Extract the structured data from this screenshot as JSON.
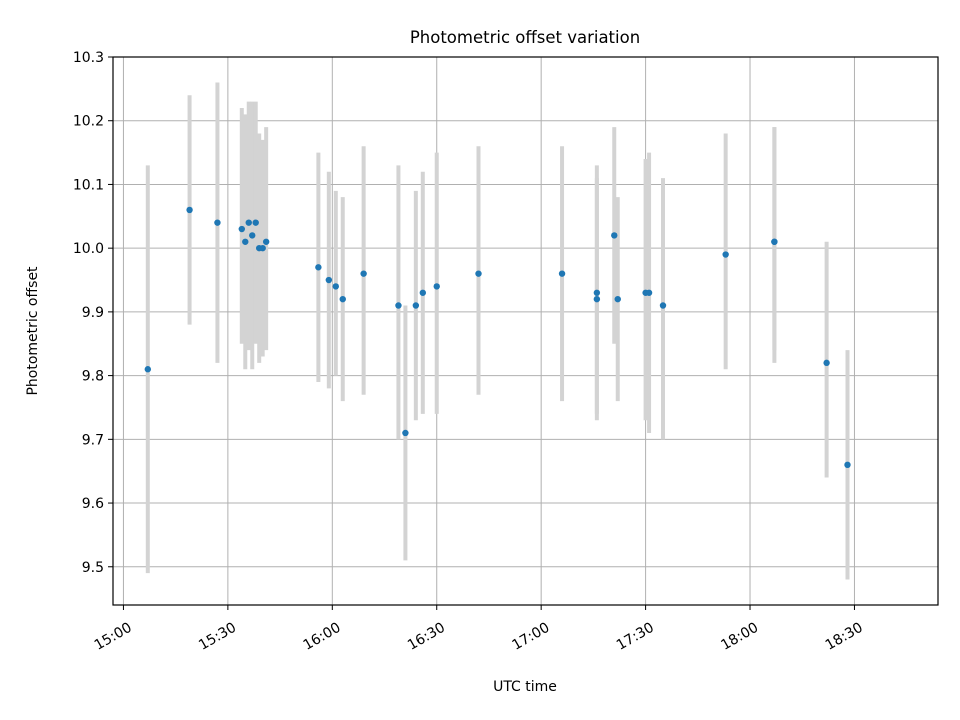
{
  "chart_data": {
    "type": "scatter",
    "title": "Photometric offset variation",
    "xlabel": "UTC time",
    "ylabel": "Photometric offset",
    "xlim": [
      "14:57",
      "18:54"
    ],
    "ylim": [
      9.44,
      10.3
    ],
    "x_ticks": [
      "15:00",
      "15:30",
      "16:00",
      "16:30",
      "17:00",
      "17:30",
      "18:00",
      "18:30"
    ],
    "y_ticks": [
      "9.5",
      "9.6",
      "9.7",
      "9.8",
      "9.9",
      "10.0",
      "10.1",
      "10.2",
      "10.3"
    ],
    "grid": true,
    "colors": {
      "points": "#1f77b4",
      "error_bars": "#d3d3d3",
      "grid": "#b0b0b0"
    },
    "points": [
      {
        "time": "15:07",
        "value": 9.81,
        "err_low": 9.49,
        "err_high": 10.13
      },
      {
        "time": "15:19",
        "value": 10.06,
        "err_low": 9.88,
        "err_high": 10.24
      },
      {
        "time": "15:27",
        "value": 10.04,
        "err_low": 9.82,
        "err_high": 10.26
      },
      {
        "time": "15:34",
        "value": 10.03,
        "err_low": 9.85,
        "err_high": 10.22
      },
      {
        "time": "15:35",
        "value": 10.01,
        "err_low": 9.81,
        "err_high": 10.21
      },
      {
        "time": "15:36",
        "value": 10.04,
        "err_low": 9.84,
        "err_high": 10.23
      },
      {
        "time": "15:37",
        "value": 10.02,
        "err_low": 9.81,
        "err_high": 10.23
      },
      {
        "time": "15:38",
        "value": 10.04,
        "err_low": 9.85,
        "err_high": 10.23
      },
      {
        "time": "15:39",
        "value": 10.0,
        "err_low": 9.82,
        "err_high": 10.18
      },
      {
        "time": "15:40",
        "value": 10.0,
        "err_low": 9.83,
        "err_high": 10.17
      },
      {
        "time": "15:41",
        "value": 10.01,
        "err_low": 9.84,
        "err_high": 10.19
      },
      {
        "time": "15:56",
        "value": 9.97,
        "err_low": 9.79,
        "err_high": 10.15
      },
      {
        "time": "15:59",
        "value": 9.95,
        "err_low": 9.78,
        "err_high": 10.12
      },
      {
        "time": "16:01",
        "value": 9.94,
        "err_low": 9.8,
        "err_high": 10.09
      },
      {
        "time": "16:03",
        "value": 9.92,
        "err_low": 9.76,
        "err_high": 10.08
      },
      {
        "time": "16:09",
        "value": 9.96,
        "err_low": 9.77,
        "err_high": 10.16
      },
      {
        "time": "16:19",
        "value": 9.91,
        "err_low": 9.7,
        "err_high": 10.13
      },
      {
        "time": "16:21",
        "value": 9.71,
        "err_low": 9.51,
        "err_high": 9.91
      },
      {
        "time": "16:24",
        "value": 9.91,
        "err_low": 9.73,
        "err_high": 10.09
      },
      {
        "time": "16:26",
        "value": 9.93,
        "err_low": 9.74,
        "err_high": 10.12
      },
      {
        "time": "16:30",
        "value": 9.94,
        "err_low": 9.74,
        "err_high": 10.15
      },
      {
        "time": "16:42",
        "value": 9.96,
        "err_low": 9.77,
        "err_high": 10.16
      },
      {
        "time": "17:06",
        "value": 9.96,
        "err_low": 9.76,
        "err_high": 10.16
      },
      {
        "time": "17:16",
        "value": 9.92,
        "err_low": 9.73,
        "err_high": 10.11
      },
      {
        "time": "17:16",
        "value": 9.93,
        "err_low": 9.74,
        "err_high": 10.13
      },
      {
        "time": "17:21",
        "value": 10.02,
        "err_low": 9.85,
        "err_high": 10.19
      },
      {
        "time": "17:22",
        "value": 9.92,
        "err_low": 9.76,
        "err_high": 10.08
      },
      {
        "time": "17:30",
        "value": 9.93,
        "err_low": 9.73,
        "err_high": 10.14
      },
      {
        "time": "17:31",
        "value": 9.93,
        "err_low": 9.71,
        "err_high": 10.15
      },
      {
        "time": "17:35",
        "value": 9.91,
        "err_low": 9.7,
        "err_high": 10.11
      },
      {
        "time": "17:53",
        "value": 9.99,
        "err_low": 9.81,
        "err_high": 10.18
      },
      {
        "time": "18:07",
        "value": 10.01,
        "err_low": 9.82,
        "err_high": 10.19
      },
      {
        "time": "18:07",
        "value": 10.01,
        "err_low": 9.84,
        "err_high": 10.19
      },
      {
        "time": "18:22",
        "value": 9.82,
        "err_low": 9.64,
        "err_high": 10.01
      },
      {
        "time": "18:28",
        "value": 9.66,
        "err_low": 9.48,
        "err_high": 9.84
      }
    ]
  }
}
